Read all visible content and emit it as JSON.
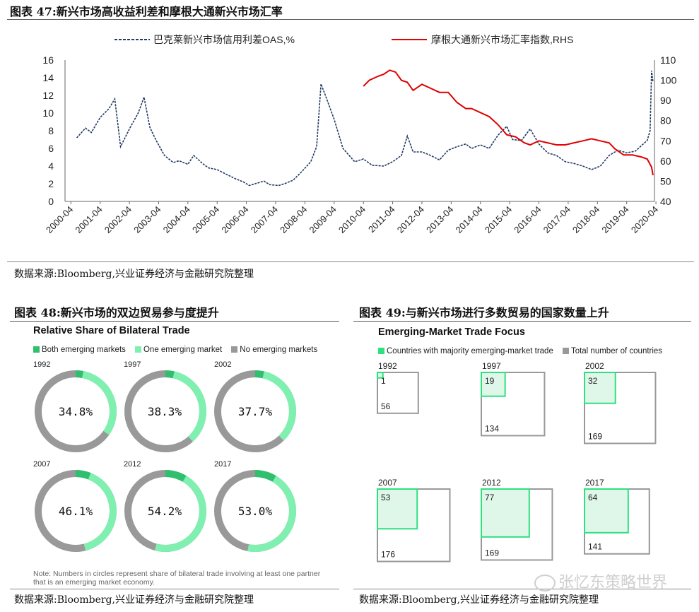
{
  "fig47": {
    "title": "图表 47:新兴市场高收益利差和摩根大通新兴市场汇率",
    "source": "数据来源:Bloomberg,兴业证券经济与金融研究院整理",
    "chart_data": {
      "type": "line",
      "legend": [
        "巴克莱新兴市场信用利差OAS,%",
        "摩根大通新兴市场汇率指数,RHS"
      ],
      "x_ticks": [
        "2000-04",
        "2001-04",
        "2002-04",
        "2003-04",
        "2004-04",
        "2005-04",
        "2006-04",
        "2007-04",
        "2008-04",
        "2009-04",
        "2010-04",
        "2011-04",
        "2012-04",
        "2013-04",
        "2014-04",
        "2015-04",
        "2016-04",
        "2017-04",
        "2018-04",
        "2019-04",
        "2020-04"
      ],
      "y_left": {
        "min": 0,
        "max": 16,
        "ticks": [
          0,
          2,
          4,
          6,
          8,
          10,
          12,
          14,
          16
        ]
      },
      "y_right": {
        "min": 40,
        "max": 110,
        "ticks": [
          40,
          50,
          60,
          70,
          80,
          90,
          100,
          110
        ]
      },
      "series": [
        {
          "name": "巴克莱新兴市场信用利差OAS,%",
          "color": "#1f3864",
          "style": "dashed",
          "axis": "left",
          "x": [
            2000.5,
            2000.8,
            2001.0,
            2001.3,
            2001.6,
            2001.8,
            2002.0,
            2002.3,
            2002.6,
            2002.8,
            2003.0,
            2003.2,
            2003.5,
            2003.8,
            2004.0,
            2004.3,
            2004.5,
            2004.8,
            2005.0,
            2005.3,
            2005.6,
            2005.9,
            2006.2,
            2006.4,
            2006.6,
            2006.9,
            2007.1,
            2007.4,
            2007.6,
            2007.9,
            2008.2,
            2008.5,
            2008.7,
            2008.85,
            2009.0,
            2009.3,
            2009.6,
            2010.0,
            2010.3,
            2010.6,
            2011.0,
            2011.3,
            2011.6,
            2011.8,
            2012.0,
            2012.3,
            2012.6,
            2012.9,
            2013.2,
            2013.5,
            2013.8,
            2014.0,
            2014.3,
            2014.6,
            2014.9,
            2015.2,
            2015.4,
            2015.7,
            2016.0,
            2016.3,
            2016.6,
            2016.9,
            2017.2,
            2017.5,
            2017.8,
            2018.1,
            2018.4,
            2018.7,
            2019.0,
            2019.3,
            2019.6,
            2019.9,
            2020.0,
            2020.1,
            2020.15,
            2020.2
          ],
          "y": [
            7.2,
            8.3,
            7.8,
            9.5,
            10.5,
            11.6,
            6.2,
            8.2,
            10.0,
            11.8,
            8.4,
            7.0,
            5.2,
            4.4,
            4.6,
            4.2,
            5.2,
            4.3,
            3.8,
            3.6,
            3.1,
            2.6,
            2.2,
            1.8,
            2.0,
            2.3,
            1.9,
            1.8,
            2.0,
            2.4,
            3.4,
            4.5,
            6.2,
            13.3,
            12.0,
            9.3,
            6.0,
            4.5,
            4.8,
            4.1,
            4.0,
            4.5,
            5.2,
            7.4,
            5.6,
            5.6,
            5.2,
            4.7,
            5.8,
            6.2,
            6.5,
            6.0,
            6.4,
            6.0,
            7.5,
            8.5,
            7.0,
            6.9,
            8.2,
            6.5,
            5.5,
            5.2,
            4.5,
            4.3,
            4.0,
            3.6,
            4.0,
            5.2,
            5.8,
            5.5,
            5.7,
            6.6,
            6.9,
            8.0,
            14.8,
            13.5
          ]
        },
        {
          "name": "摩根大通新兴市场汇率指数,RHS",
          "color": "#e00000",
          "style": "solid",
          "axis": "right",
          "x": [
            2010.3,
            2010.5,
            2010.8,
            2011.0,
            2011.2,
            2011.4,
            2011.6,
            2011.8,
            2012.0,
            2012.3,
            2012.6,
            2012.9,
            2013.2,
            2013.5,
            2013.8,
            2014.0,
            2014.3,
            2014.6,
            2014.9,
            2015.2,
            2015.5,
            2015.8,
            2016.0,
            2016.3,
            2016.6,
            2016.9,
            2017.2,
            2017.5,
            2017.8,
            2018.1,
            2018.4,
            2018.7,
            2018.9,
            2019.2,
            2019.5,
            2019.8,
            2020.0,
            2020.15,
            2020.2
          ],
          "y": [
            97,
            100,
            102,
            103,
            105,
            104,
            100,
            99,
            95,
            98,
            96,
            94,
            94,
            89,
            86,
            86,
            84,
            82,
            78,
            73,
            72,
            69,
            68,
            70,
            69,
            68,
            68,
            69,
            70,
            71,
            70,
            69,
            66,
            63,
            63,
            62,
            61,
            57,
            53
          ]
        }
      ]
    }
  },
  "fig48": {
    "title": "图表 48:新兴市场的双边贸易参与度提升",
    "source": "数据来源:Bloomberg,兴业证券经济与金融研究院整理",
    "chart_data": {
      "type": "donut",
      "title": "Relative Share of Bilateral Trade",
      "legend": [
        {
          "name": "Both emerging markets",
          "color": "#2fbf6f"
        },
        {
          "name": "One emerging market",
          "color": "#7ff0b0"
        },
        {
          "name": "No emerging markets",
          "color": "#999999"
        }
      ],
      "items": [
        {
          "year": "1992",
          "label": "34.8%",
          "both": 3.0,
          "one": 31.8
        },
        {
          "year": "1997",
          "label": "38.3%",
          "both": 3.5,
          "one": 34.8
        },
        {
          "year": "2002",
          "label": "37.7%",
          "both": 3.5,
          "one": 34.2
        },
        {
          "year": "2007",
          "label": "46.1%",
          "both": 6.0,
          "one": 40.1
        },
        {
          "year": "2012",
          "label": "54.2%",
          "both": 8.5,
          "one": 45.7
        },
        {
          "year": "2017",
          "label": "53.0%",
          "both": 8.5,
          "one": 44.5
        }
      ],
      "note_line1": "Note: Numbers in circles represent share of bilateral trade involving at least one partner",
      "note_line2": "that is an emerging market economy."
    }
  },
  "fig49": {
    "title": "图表 49:与新兴市场进行多数贸易的国家数量上升",
    "source": "数据来源:Bloomberg,兴业证券经济与金融研究院整理",
    "chart_data": {
      "type": "nested-squares",
      "title": "Emerging-Market Trade Focus",
      "legend": [
        {
          "name": "Countries with majority emerging-market trade",
          "color": "#2ee07f"
        },
        {
          "name": "Total number of countries",
          "color": "#999999"
        }
      ],
      "items": [
        {
          "year": "1992",
          "majority": 1,
          "total": 56
        },
        {
          "year": "1997",
          "majority": 19,
          "total": 134
        },
        {
          "year": "2002",
          "majority": 32,
          "total": 169
        },
        {
          "year": "2007",
          "majority": 53,
          "total": 176
        },
        {
          "year": "2012",
          "majority": 77,
          "total": 169
        },
        {
          "year": "2017",
          "majority": 64,
          "total": 141
        }
      ]
    }
  },
  "watermark": "张忆东策略世界"
}
